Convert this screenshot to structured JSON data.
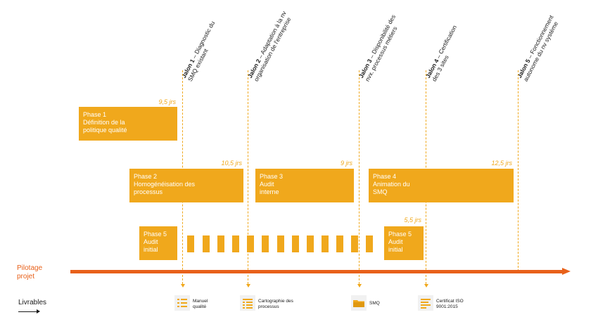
{
  "jalons": [
    {
      "bold": "Jalon 1",
      "rest": " – Diagnostic du",
      "line2": "SMQ existant"
    },
    {
      "bold": "Jalon 2",
      "rest": " – Adaptation à la nv",
      "line2": "organisation de l'entreprise"
    },
    {
      "bold": "Jalon 3",
      "rest": " – Disponibilité des",
      "line2": "nvx. processus métiers"
    },
    {
      "bold": "Jalon 4",
      "rest": " – Certification",
      "line2": "des 3 sites"
    },
    {
      "bold": "Jalon 5",
      "rest": " – Fonctionnement",
      "line2": "autonome du nv système"
    }
  ],
  "phases": [
    {
      "label": "Phase 1\nDéfinition de la\npolitique qualité",
      "duration": "9,5 jrs"
    },
    {
      "label": "Phase 2\nHomogénéisation des\nprocessus",
      "duration": "10,5 jrs"
    },
    {
      "label": "Phase 3\nAudit\ninterne",
      "duration": "9 jrs"
    },
    {
      "label": "Phase 4\nAnimation du\nSMQ",
      "duration": "12,5 jrs"
    },
    {
      "label": "Phase 5\nAudit\ninitial",
      "duration": ""
    },
    {
      "label": "Phase 5\nAudit\ninitial",
      "duration": "5,5 jrs"
    }
  ],
  "pilotage_label": "Pilotage\nprojet",
  "livrables_label": "Livrables",
  "livrables": [
    {
      "icon": "list-icon",
      "label": "Manuel\nqualité"
    },
    {
      "icon": "grid-list-icon",
      "label": "Cartographie des\nprocessus"
    },
    {
      "icon": "folder-icon",
      "label": "SMQ"
    },
    {
      "icon": "document-icon",
      "label": "Certificat ISO\n9001:2015"
    }
  ],
  "colors": {
    "phase": "#F0A81C",
    "timeline": "#E8611A"
  }
}
